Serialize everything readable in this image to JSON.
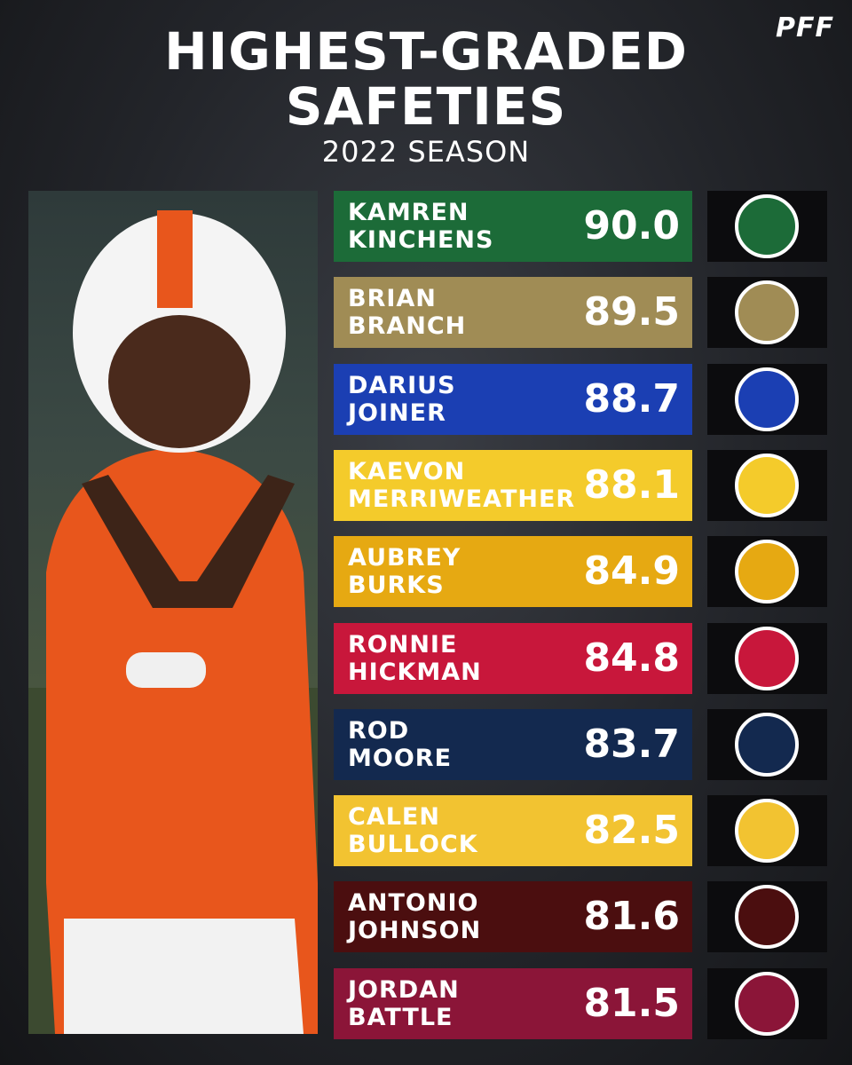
{
  "header": {
    "title": [
      "HIGHEST-GRADED",
      "SAFETIES"
    ],
    "subtitle": "2022 SEASON",
    "brand": "PFF"
  },
  "players": [
    {
      "first": "KAMREN",
      "last": "KINCHENS",
      "grade": "90.0",
      "color": "#1c6b38"
    },
    {
      "first": "BRIAN",
      "last": "BRANCH",
      "grade": "89.5",
      "color": "#a08c55"
    },
    {
      "first": "DARIUS",
      "last": "JOINER",
      "grade": "88.7",
      "color": "#1b3fb3"
    },
    {
      "first": "KAEVON",
      "last": "MERRIWEATHER",
      "grade": "88.1",
      "color": "#f4cb2b"
    },
    {
      "first": "AUBREY",
      "last": "BURKS",
      "grade": "84.9",
      "color": "#e6a912"
    },
    {
      "first": "RONNIE",
      "last": "HICKMAN",
      "grade": "84.8",
      "color": "#c8173b"
    },
    {
      "first": "ROD",
      "last": "MOORE",
      "grade": "83.7",
      "color": "#13294f"
    },
    {
      "first": "CALEN",
      "last": "BULLOCK",
      "grade": "82.5",
      "color": "#f2c331"
    },
    {
      "first": "ANTONIO",
      "last": "JOHNSON",
      "grade": "81.6",
      "color": "#4b0e0f"
    },
    {
      "first": "JORDAN",
      "last": "BATTLE",
      "grade": "81.5",
      "color": "#8b1538"
    }
  ]
}
